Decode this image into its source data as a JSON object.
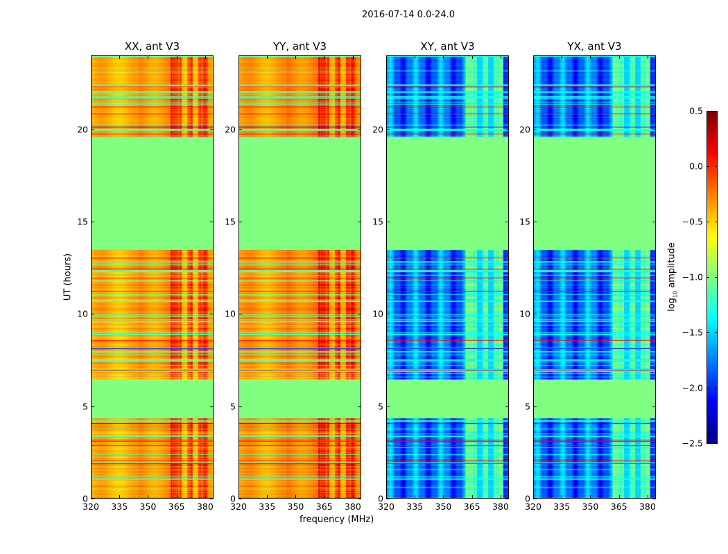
{
  "chart_data": {
    "type": "heatmap",
    "title": "2016-07-14 0.0-24.0",
    "xlabel": "frequency (MHz)",
    "ylabel": "UT (hours)",
    "xlim": [
      320,
      384.4
    ],
    "ylim": [
      0,
      24
    ],
    "xticks": [
      "320",
      "335",
      "350",
      "365",
      "380"
    ],
    "xtick_values": [
      320,
      335,
      350,
      365,
      380
    ],
    "yticks": [
      "0",
      "5",
      "10",
      "15",
      "20"
    ],
    "ytick_values": [
      0,
      5,
      10,
      15,
      20
    ],
    "panels": [
      {
        "title": "XX, ant V3",
        "base": -0.4,
        "rfi_level": -0.05
      },
      {
        "title": "YY, ant V3",
        "base": -0.35,
        "rfi_level": 0.0
      },
      {
        "title": "XY, ant V3",
        "base": -1.8,
        "rfi_level": -1.1
      },
      {
        "title": "YX, ant V3",
        "base": -1.8,
        "rfi_level": -1.1
      }
    ],
    "flagged_ut_ranges": [
      [
        4.4,
        6.5
      ],
      [
        13.5,
        19.6
      ]
    ],
    "flag_value": -1.0,
    "rfi_band_mhz": [
      362,
      382
    ],
    "colorbar": {
      "label": "log10 amplitude",
      "label_main": "log",
      "label_sub": "10",
      "label_rest": " amplitude",
      "colormap": "jet",
      "vmin": -2.5,
      "vmax": 0.5,
      "ticks": [
        "0.5",
        "0.0",
        "−0.5",
        "−1.0",
        "−1.5",
        "−2.0",
        "−2.5"
      ],
      "tick_values": [
        0.5,
        0.0,
        -0.5,
        -1.0,
        -1.5,
        -2.0,
        -2.5
      ]
    }
  }
}
